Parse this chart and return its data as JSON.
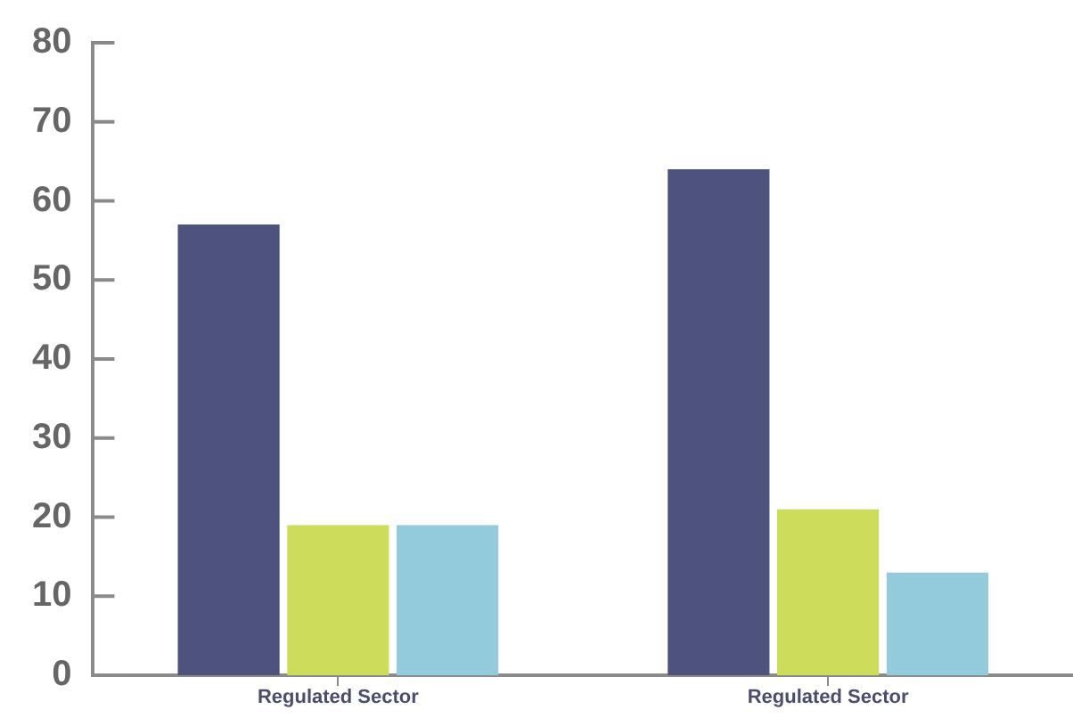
{
  "chart_data": {
    "type": "bar",
    "categories": [
      "Regulated Sector",
      "Regulated Sector"
    ],
    "series": [
      {
        "color": "#4e537d",
        "values": [
          57,
          64
        ]
      },
      {
        "color": "#cddc5a",
        "values": [
          19,
          21
        ]
      },
      {
        "color": "#94cbdc",
        "values": [
          19,
          13
        ]
      }
    ],
    "ylim": [
      0,
      80
    ],
    "yticks": [
      0,
      10,
      20,
      30,
      40,
      50,
      60,
      70,
      80
    ]
  }
}
